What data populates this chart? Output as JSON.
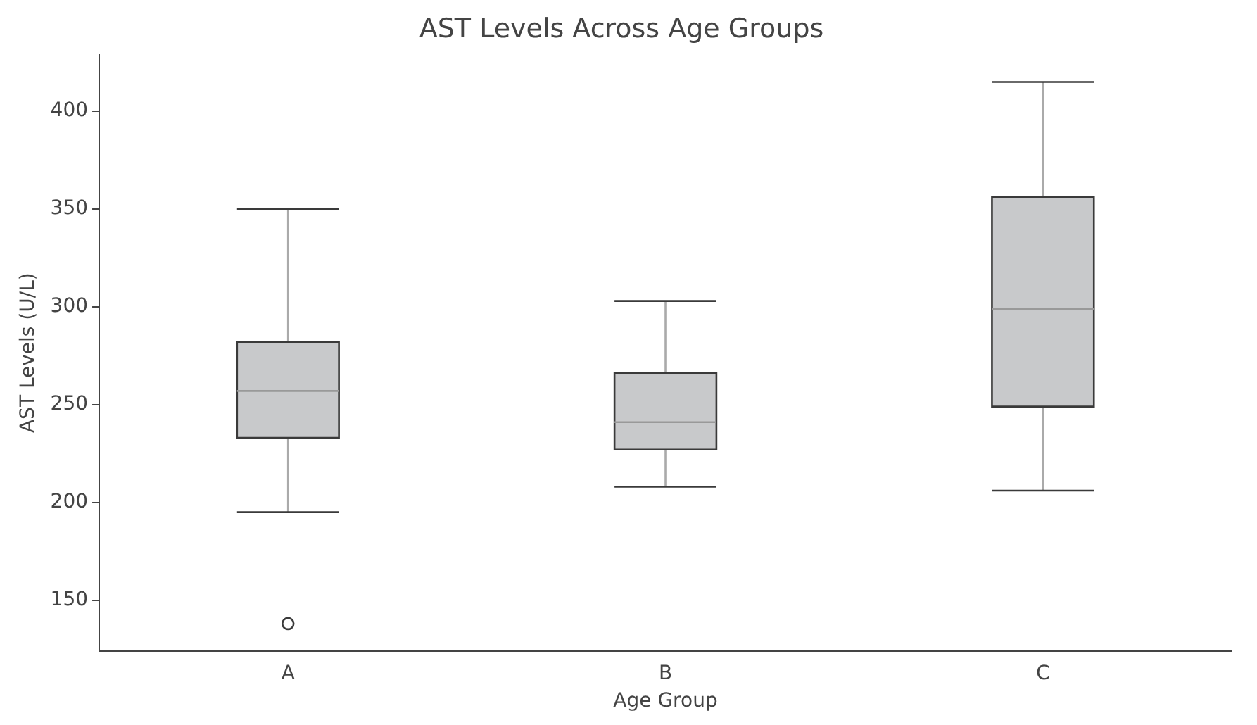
{
  "chart_data": {
    "type": "box",
    "title": "AST Levels Across Age Groups",
    "xlabel": "Age Group",
    "ylabel": "AST Levels (U/L)",
    "categories": [
      "A",
      "B",
      "C"
    ],
    "boxes": [
      {
        "low": 195,
        "q1": 233,
        "median": 257,
        "q3": 282,
        "high": 350,
        "outliers": [
          138
        ]
      },
      {
        "low": 208,
        "q1": 227,
        "median": 241,
        "q3": 266,
        "high": 303
      },
      {
        "low": 206,
        "q1": 249,
        "median": 299,
        "q3": 356,
        "high": 415
      }
    ],
    "color": "#c8c9cb",
    "ylim": [
      124,
      429
    ],
    "yticks": [
      150,
      200,
      250,
      300,
      350,
      400
    ],
    "grid": false,
    "legend": false
  }
}
